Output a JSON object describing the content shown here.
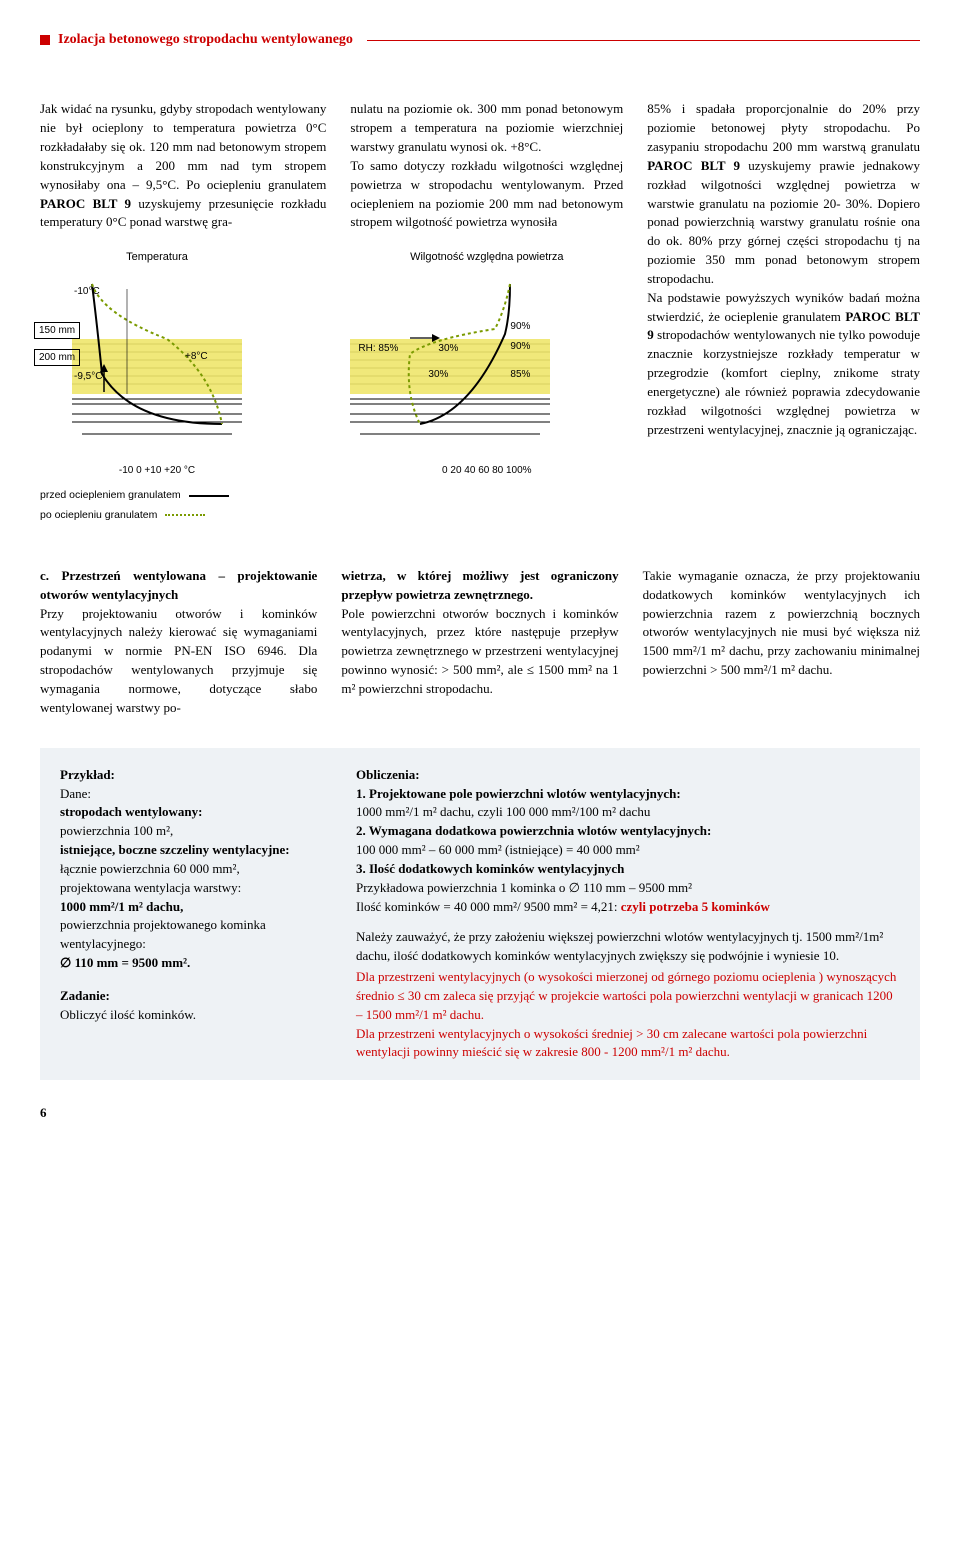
{
  "header": {
    "title": "Izolacja betonowego stropodachu wentylowanego"
  },
  "para1_col1": "Jak widać na rysunku, gdyby stropodach wentylowany nie był ocieplony to temperatura powietrza 0°C rozkładałaby się ok. 120 mm nad betonowym stropem konstrukcyjnym a 200 mm nad tym stropem wynosiłaby ona – 9,5°C. Po ociepleniu granulatem PAROC BLT 9 uzyskujemy przesunięcie rozkładu temperatury 0°C ponad warstwę gra-",
  "para1_col2": "nulatu na poziomie ok. 300 mm ponad betonowym stropem  a temperatura na poziomie wierzchniej warstwy granulatu wynosi ok. +8°C.\nTo samo dotyczy rozkładu wilgotności względnej powietrza w stropodachu wentylowanym. Przed ociepleniem na poziomie 200 mm nad betonowym stropem wilgotność powietrza wynosiła",
  "para1_col3": "85% i spadała proporcjonalnie do 20% przy poziomie betonowej płyty stropodachu. Po zasypaniu stropodachu 200 mm warstwą granulatu PAROC BLT 9 uzyskujemy prawie jednakowy rozkład wilgotności względnej powietrza w warstwie granulatu na poziomie 20- 30%. Dopiero ponad powierzchnią warstwy granulatu rośnie ona do ok. 80% przy górnej części stropodachu tj na poziomie 350 mm ponad betonowym stropem stropodachu.\n   Na podstawie powyższych wyników badań można stwierdzić, że ocieplenie granulatem PAROC BLT 9 stropodachów wentylowanych nie tylko powoduje znacznie korzystniejsze rozkłady temperatur w przegrodzie (komfort cieplny, znikome straty energetyczne) ale również poprawia zdecydowanie rozkład wilgotności względnej powietrza w przestrzeni wentylacyjnej, znacznie ją ograniczając.",
  "fig": {
    "dim_a": "150\nmm",
    "dim_b": "200\nmm",
    "t_title": "Temperatura",
    "h_title": "Wilgotność względna powietrza",
    "t_top": "-10°C",
    "t_left": "-9,5°C",
    "t_right": "+8°C",
    "t_xticks": "-10     0   +10  +20 °C",
    "h_rh": "RH: 85%",
    "h_30a": "30%",
    "h_30b": "30%",
    "h_85": "85%",
    "h_90a": "90%",
    "h_90b": "90%",
    "h_xticks": "0    20    40    60    80 100%",
    "legend_before": "przed ociepleniem granulatem",
    "legend_after": "po ociepleniu granulatem",
    "colors": {
      "granulate": "#f0e87a",
      "hatch": "#d8d060",
      "solid": "#000000",
      "dotted": "#7a9a00",
      "bg": "#ffffff"
    }
  },
  "sec_c": {
    "head": "c. Przestrzeń wentylowana – projektowanie otworów wentylacyjnych",
    "c1": "Przy projektowaniu otworów i kominków wentylacyjnych należy kierować się wymaganiami podanymi w normie PN-EN ISO 6946. Dla stropodachów wentylowanych przyjmuje się wymagania normowe, dotyczące słabo wentylowanej warstwy po-",
    "c2a": "wietrza, w której możliwy jest ograniczony przepływ powietrza zewnętrznego.",
    "c2b": "Pole powierzchni otworów bocznych i kominków wentylacyjnych, przez które następuje przepływ powietrza zewnętrznego w przestrzeni wentylacyjnej powinno wynosić:  > 500 mm², ale ≤ 1500 mm² na 1 m² powierzchni stropodachu.",
    "c3": "Takie wymaganie oznacza, że przy projektowaniu dodatkowych kominków wentylacyjnych ich powierzchnia razem z powierzchnią bocznych otworów wentylacyjnych nie musi być większa niż 1500 mm²/1 m² dachu, przy zachowaniu minimalnej powierzchni > 500 mm²/1 m² dachu."
  },
  "example": {
    "left_head": "Przykład:",
    "left": "Dane:\nstropodach wentylowany:\npowierzchnia 100 m²,\nistniejące, boczne szczeliny wentylacyjne:\nłącznie powierzchnia 60 000 mm²,\nprojektowana wentylacja warstwy:\n1000 mm²/1 m² dachu,\npowierzchnia projektowanego kominka wentylacyjnego:\n∅ 110 mm = 9500 mm².",
    "task_head": "Zadanie:",
    "task": "Obliczyć ilość kominków.",
    "right_head": "Obliczenia:",
    "r1h": "1. Projektowane pole powierzchni wlotów wentylacyjnych:",
    "r1": "1000 mm²/1 m² dachu, czyli 100 000 mm²/100 m² dachu",
    "r2h": "2. Wymagana dodatkowa powierzchnia wlotów wentylacyjnych:",
    "r2": "100 000 mm² – 60 000 mm² (istniejące) = 40 000 mm²",
    "r3h": "3. Ilość dodatkowych kominków wentylacyjnych",
    "r3a": "Przykładowa powierzchnia 1 kominka o ∅ 110 mm – 9500 mm²",
    "r3b": "Ilość kominków =  40 000 mm²/ 9500 mm² = 4,21: ",
    "r3b_red": "czyli potrzeba 5 kominków",
    "note1": "Należy zauważyć, że przy założeniu większej powierzchni wlotów wentylacyjnych tj. 1500 mm²/1m² dachu, ilość dodatkowych kominków wentylacyjnych zwiększy się podwójnie i wyniesie 10.",
    "note2": "Dla przestrzeni wentylacyjnych (o wysokości mierzonej od górnego poziomu ocieplenia ) wynoszących średnio ≤ 30 cm zaleca się przyjąć w projekcie wartości pola powierzchni wentylacji w granicach 1200 – 1500 mm²/1 m² dachu.",
    "note3": "Dla przestrzeni wentylacyjnych o wysokości średniej > 30 cm zalecane wartości pola powierzchni wentylacji powinny mieścić się w zakresie 800 - 1200 mm²/1 m² dachu."
  },
  "pagenum": "6"
}
